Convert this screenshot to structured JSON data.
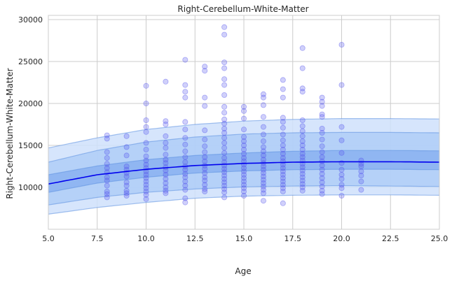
{
  "chart_data": {
    "type": "scatter",
    "title": "Right-Cerebellum-White-Matter",
    "xlabel": "Age",
    "ylabel": "Right-Cerebellum-White-Matter",
    "xlim": [
      5,
      25
    ],
    "ylim": [
      5000,
      30500
    ],
    "x_ticks": [
      5.0,
      7.5,
      10.0,
      12.5,
      15.0,
      17.5,
      20.0,
      22.5,
      25.0
    ],
    "x_tick_labels": [
      "5.0",
      "7.5",
      "10.0",
      "12.5",
      "15.0",
      "17.5",
      "20.0",
      "22.5",
      "25.0"
    ],
    "y_ticks": [
      10000,
      15000,
      20000,
      25000,
      30000
    ],
    "y_tick_labels": [
      "10000",
      "15000",
      "20000",
      "25000",
      "30000"
    ],
    "grid": true,
    "colors": {
      "points": "#5555ee",
      "median_line": "#0000ee",
      "band_outer": "#cfe0fb",
      "band_middle": "#a9c9f7",
      "band_inner": "#84acf0",
      "band_edge": "#5b8fe0"
    },
    "centile_curves": {
      "age": [
        5,
        7.5,
        10,
        12.5,
        15,
        17.5,
        20,
        22.5,
        25
      ],
      "p0_5": [
        6800,
        7600,
        8200,
        8700,
        8950,
        9050,
        9100,
        9100,
        9050
      ],
      "p2_5": [
        7900,
        8800,
        9400,
        9800,
        10050,
        10150,
        10200,
        10150,
        10100
      ],
      "p25": [
        9400,
        10500,
        11200,
        11700,
        11950,
        12100,
        12150,
        12150,
        12100
      ],
      "median": [
        10400,
        11500,
        12150,
        12600,
        12850,
        13000,
        13050,
        13050,
        13000
      ],
      "p75": [
        11500,
        12550,
        13300,
        13800,
        14100,
        14300,
        14400,
        14400,
        14350
      ],
      "p97_5": [
        13000,
        14400,
        15400,
        16000,
        16350,
        16500,
        16550,
        16550,
        16500
      ],
      "p99_5": [
        14700,
        15900,
        16900,
        17500,
        17900,
        18100,
        18200,
        18200,
        18150
      ]
    },
    "points": [
      [
        8,
        16200
      ],
      [
        8,
        15800
      ],
      [
        8,
        14200
      ],
      [
        8,
        13500
      ],
      [
        8,
        12800
      ],
      [
        8,
        12300
      ],
      [
        8,
        11800
      ],
      [
        8,
        11200
      ],
      [
        8,
        10800
      ],
      [
        8,
        10200
      ],
      [
        8,
        9500
      ],
      [
        8,
        9200
      ],
      [
        8,
        8800
      ],
      [
        9,
        16100
      ],
      [
        9,
        14800
      ],
      [
        9,
        13800
      ],
      [
        9,
        12500
      ],
      [
        9,
        12100
      ],
      [
        9,
        11700
      ],
      [
        9,
        11300
      ],
      [
        9,
        10600
      ],
      [
        9,
        10200
      ],
      [
        9,
        9600
      ],
      [
        9,
        9300
      ],
      [
        9,
        9000
      ],
      [
        10,
        22100
      ],
      [
        10,
        20000
      ],
      [
        10,
        18000
      ],
      [
        10,
        17200
      ],
      [
        10,
        16600
      ],
      [
        10,
        15300
      ],
      [
        10,
        14500
      ],
      [
        10,
        13700
      ],
      [
        10,
        13200
      ],
      [
        10,
        12700
      ],
      [
        10,
        12300
      ],
      [
        10,
        11900
      ],
      [
        10,
        11500
      ],
      [
        10,
        11100
      ],
      [
        10,
        10700
      ],
      [
        10,
        10300
      ],
      [
        10,
        9900
      ],
      [
        10,
        9500
      ],
      [
        10,
        9100
      ],
      [
        10,
        8600
      ],
      [
        11,
        22600
      ],
      [
        11,
        17900
      ],
      [
        11,
        17500
      ],
      [
        11,
        16100
      ],
      [
        11,
        15300
      ],
      [
        11,
        14700
      ],
      [
        11,
        13900
      ],
      [
        11,
        13300
      ],
      [
        11,
        12900
      ],
      [
        11,
        12400
      ],
      [
        11,
        12000
      ],
      [
        11,
        11500
      ],
      [
        11,
        11000
      ],
      [
        11,
        10500
      ],
      [
        11,
        10000
      ],
      [
        11,
        9600
      ],
      [
        11,
        9300
      ],
      [
        12,
        25200
      ],
      [
        12,
        22200
      ],
      [
        12,
        21400
      ],
      [
        12,
        20700
      ],
      [
        12,
        17800
      ],
      [
        12,
        16900
      ],
      [
        12,
        15900
      ],
      [
        12,
        15100
      ],
      [
        12,
        14300
      ],
      [
        12,
        13600
      ],
      [
        12,
        13000
      ],
      [
        12,
        12500
      ],
      [
        12,
        12100
      ],
      [
        12,
        11600
      ],
      [
        12,
        11200
      ],
      [
        12,
        10700
      ],
      [
        12,
        10200
      ],
      [
        12,
        9700
      ],
      [
        12,
        8700
      ],
      [
        12,
        8200
      ],
      [
        13,
        24400
      ],
      [
        13,
        23900
      ],
      [
        13,
        20700
      ],
      [
        13,
        19700
      ],
      [
        13,
        16800
      ],
      [
        13,
        15700
      ],
      [
        13,
        14900
      ],
      [
        13,
        14200
      ],
      [
        13,
        13600
      ],
      [
        13,
        13100
      ],
      [
        13,
        12600
      ],
      [
        13,
        12200
      ],
      [
        13,
        11700
      ],
      [
        13,
        11200
      ],
      [
        13,
        10800
      ],
      [
        13,
        10300
      ],
      [
        13,
        9800
      ],
      [
        13,
        9500
      ],
      [
        14,
        29100
      ],
      [
        14,
        28200
      ],
      [
        14,
        24900
      ],
      [
        14,
        24200
      ],
      [
        14,
        22900
      ],
      [
        14,
        22200
      ],
      [
        14,
        21000
      ],
      [
        14,
        19600
      ],
      [
        14,
        18900
      ],
      [
        14,
        18100
      ],
      [
        14,
        17600
      ],
      [
        14,
        17000
      ],
      [
        14,
        16500
      ],
      [
        14,
        15900
      ],
      [
        14,
        15300
      ],
      [
        14,
        14700
      ],
      [
        14,
        14100
      ],
      [
        14,
        13500
      ],
      [
        14,
        13000
      ],
      [
        14,
        12600
      ],
      [
        14,
        12200
      ],
      [
        14,
        11800
      ],
      [
        14,
        11400
      ],
      [
        14,
        11000
      ],
      [
        14,
        10600
      ],
      [
        14,
        10200
      ],
      [
        14,
        9800
      ],
      [
        14,
        9400
      ],
      [
        14,
        8800
      ],
      [
        15,
        19600
      ],
      [
        15,
        19100
      ],
      [
        15,
        18200
      ],
      [
        15,
        16900
      ],
      [
        15,
        16000
      ],
      [
        15,
        15500
      ],
      [
        15,
        15000
      ],
      [
        15,
        14500
      ],
      [
        15,
        14000
      ],
      [
        15,
        13500
      ],
      [
        15,
        13100
      ],
      [
        15,
        12700
      ],
      [
        15,
        12300
      ],
      [
        15,
        11900
      ],
      [
        15,
        11500
      ],
      [
        15,
        11100
      ],
      [
        15,
        10700
      ],
      [
        15,
        10300
      ],
      [
        15,
        9900
      ],
      [
        15,
        9500
      ],
      [
        15,
        9000
      ],
      [
        16,
        21100
      ],
      [
        16,
        20700
      ],
      [
        16,
        19800
      ],
      [
        16,
        18400
      ],
      [
        16,
        17200
      ],
      [
        16,
        16300
      ],
      [
        16,
        15500
      ],
      [
        16,
        14800
      ],
      [
        16,
        14300
      ],
      [
        16,
        13800
      ],
      [
        16,
        13300
      ],
      [
        16,
        12900
      ],
      [
        16,
        12500
      ],
      [
        16,
        12100
      ],
      [
        16,
        11700
      ],
      [
        16,
        11300
      ],
      [
        16,
        10900
      ],
      [
        16,
        10500
      ],
      [
        16,
        10100
      ],
      [
        16,
        9700
      ],
      [
        16,
        9300
      ],
      [
        16,
        8400
      ],
      [
        17,
        22800
      ],
      [
        17,
        21700
      ],
      [
        17,
        20700
      ],
      [
        17,
        18300
      ],
      [
        17,
        17800
      ],
      [
        17,
        17100
      ],
      [
        17,
        16300
      ],
      [
        17,
        15600
      ],
      [
        17,
        15000
      ],
      [
        17,
        14500
      ],
      [
        17,
        14000
      ],
      [
        17,
        13500
      ],
      [
        17,
        13100
      ],
      [
        17,
        12700
      ],
      [
        17,
        12300
      ],
      [
        17,
        11900
      ],
      [
        17,
        11500
      ],
      [
        17,
        11100
      ],
      [
        17,
        10700
      ],
      [
        17,
        10300
      ],
      [
        17,
        9900
      ],
      [
        17,
        9500
      ],
      [
        17,
        8100
      ],
      [
        18,
        26600
      ],
      [
        18,
        24200
      ],
      [
        18,
        21800
      ],
      [
        18,
        21400
      ],
      [
        18,
        18000
      ],
      [
        18,
        17300
      ],
      [
        18,
        16700
      ],
      [
        18,
        16100
      ],
      [
        18,
        15500
      ],
      [
        18,
        15000
      ],
      [
        18,
        14500
      ],
      [
        18,
        14000
      ],
      [
        18,
        13600
      ],
      [
        18,
        13200
      ],
      [
        18,
        12800
      ],
      [
        18,
        12400
      ],
      [
        18,
        12000
      ],
      [
        18,
        11600
      ],
      [
        18,
        11200
      ],
      [
        18,
        10800
      ],
      [
        18,
        10400
      ],
      [
        18,
        10000
      ],
      [
        18,
        9600
      ],
      [
        19,
        20700
      ],
      [
        19,
        20200
      ],
      [
        19,
        19700
      ],
      [
        19,
        18700
      ],
      [
        19,
        18400
      ],
      [
        19,
        17000
      ],
      [
        19,
        16500
      ],
      [
        19,
        15700
      ],
      [
        19,
        14900
      ],
      [
        19,
        14200
      ],
      [
        19,
        13600
      ],
      [
        19,
        13100
      ],
      [
        19,
        12600
      ],
      [
        19,
        12100
      ],
      [
        19,
        11600
      ],
      [
        19,
        11100
      ],
      [
        19,
        10600
      ],
      [
        19,
        10100
      ],
      [
        19,
        9600
      ],
      [
        19,
        9200
      ],
      [
        20,
        27000
      ],
      [
        20,
        22200
      ],
      [
        20,
        17200
      ],
      [
        20,
        15600
      ],
      [
        20,
        14100
      ],
      [
        20,
        12900
      ],
      [
        20,
        12100
      ],
      [
        20,
        11500
      ],
      [
        20,
        11000
      ],
      [
        20,
        10300
      ],
      [
        20,
        9900
      ],
      [
        20,
        9000
      ],
      [
        21,
        13200
      ],
      [
        21,
        12800
      ],
      [
        21,
        12500
      ],
      [
        21,
        11900
      ],
      [
        21,
        11400
      ],
      [
        21,
        10700
      ],
      [
        21,
        9700
      ]
    ]
  }
}
